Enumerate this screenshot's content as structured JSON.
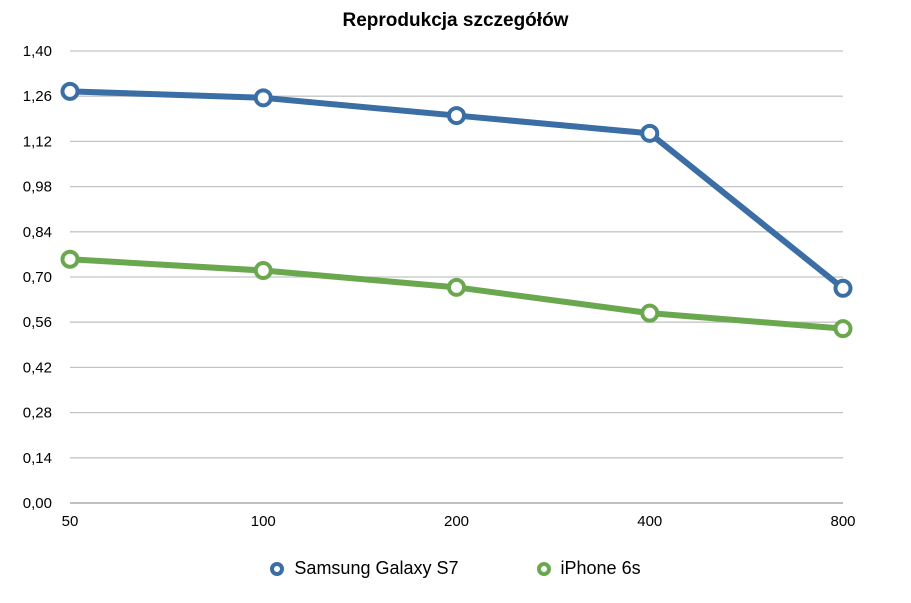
{
  "chart_data": {
    "type": "line",
    "title": "Reprodukcja szczegółów",
    "xlabel": "",
    "ylabel": "",
    "categories": [
      "50",
      "100",
      "200",
      "400",
      "800"
    ],
    "ylim": [
      0,
      1.4
    ],
    "yticks": [
      "0,00",
      "0,14",
      "0,28",
      "0,42",
      "0,56",
      "0,70",
      "0,84",
      "0,98",
      "1,12",
      "1,26",
      "1,40"
    ],
    "grid": true,
    "legend_position": "bottom",
    "series": [
      {
        "name": "Samsung Galaxy S7",
        "color": "#3a6ea5",
        "values": [
          1.275,
          1.255,
          1.2,
          1.145,
          0.665
        ]
      },
      {
        "name": "iPhone 6s",
        "color": "#6aa84f",
        "values": [
          0.755,
          0.72,
          0.668,
          0.588,
          0.54
        ]
      }
    ]
  }
}
